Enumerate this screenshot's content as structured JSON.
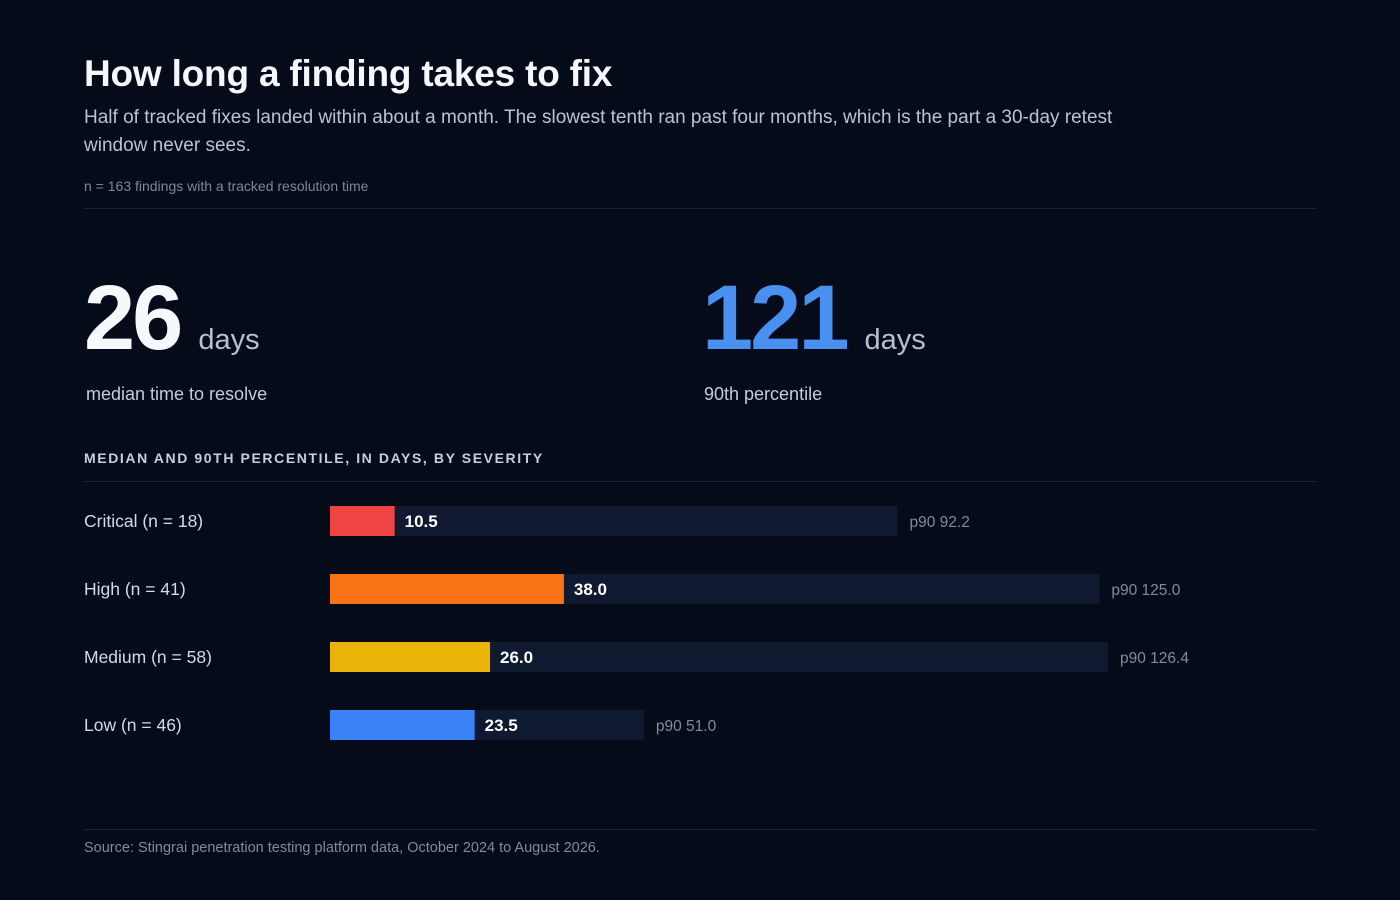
{
  "header": {
    "title": "How long a finding takes to fix",
    "subtitle": "Half of tracked fixes landed within about a month. The slowest tenth ran past four months, which is the part a 30-day retest window never sees.",
    "note": "n = 163 findings with a tracked resolution time"
  },
  "stats": {
    "median": {
      "value": "26",
      "unit": "days",
      "label": "median time to resolve"
    },
    "p90": {
      "value": "121",
      "unit": "days",
      "label": "90th percentile"
    }
  },
  "section_label": "MEDIAN AND 90TH PERCENTILE, IN DAYS, BY SEVERITY",
  "chart_data": {
    "type": "bar",
    "orientation": "horizontal",
    "title": "MEDIAN AND 90TH PERCENTILE, IN DAYS, BY SEVERITY",
    "categories": [
      "Critical (n = 18)",
      "High (n = 41)",
      "Medium (n = 58)",
      "Low (n = 46)"
    ],
    "series": [
      {
        "values": [
          10.5,
          38.0,
          26.0,
          23.5
        ],
        "value_labels": [
          "10.5",
          "38.0",
          "26.0",
          "23.5"
        ]
      },
      {
        "values": [
          92.2,
          125.0,
          126.4,
          51.0
        ],
        "value_labels": [
          "p90 92.2",
          "p90 125.0",
          "p90 126.4",
          "p90 51.0"
        ]
      }
    ],
    "colors": [
      "#ef4444",
      "#f97316",
      "#eab308",
      "#3b82f6"
    ],
    "track_color": "#0f1a30",
    "xlim": [
      0,
      160
    ]
  },
  "footer": {
    "source": "Source: Stingrai penetration testing platform data, October 2024 to August 2026."
  }
}
